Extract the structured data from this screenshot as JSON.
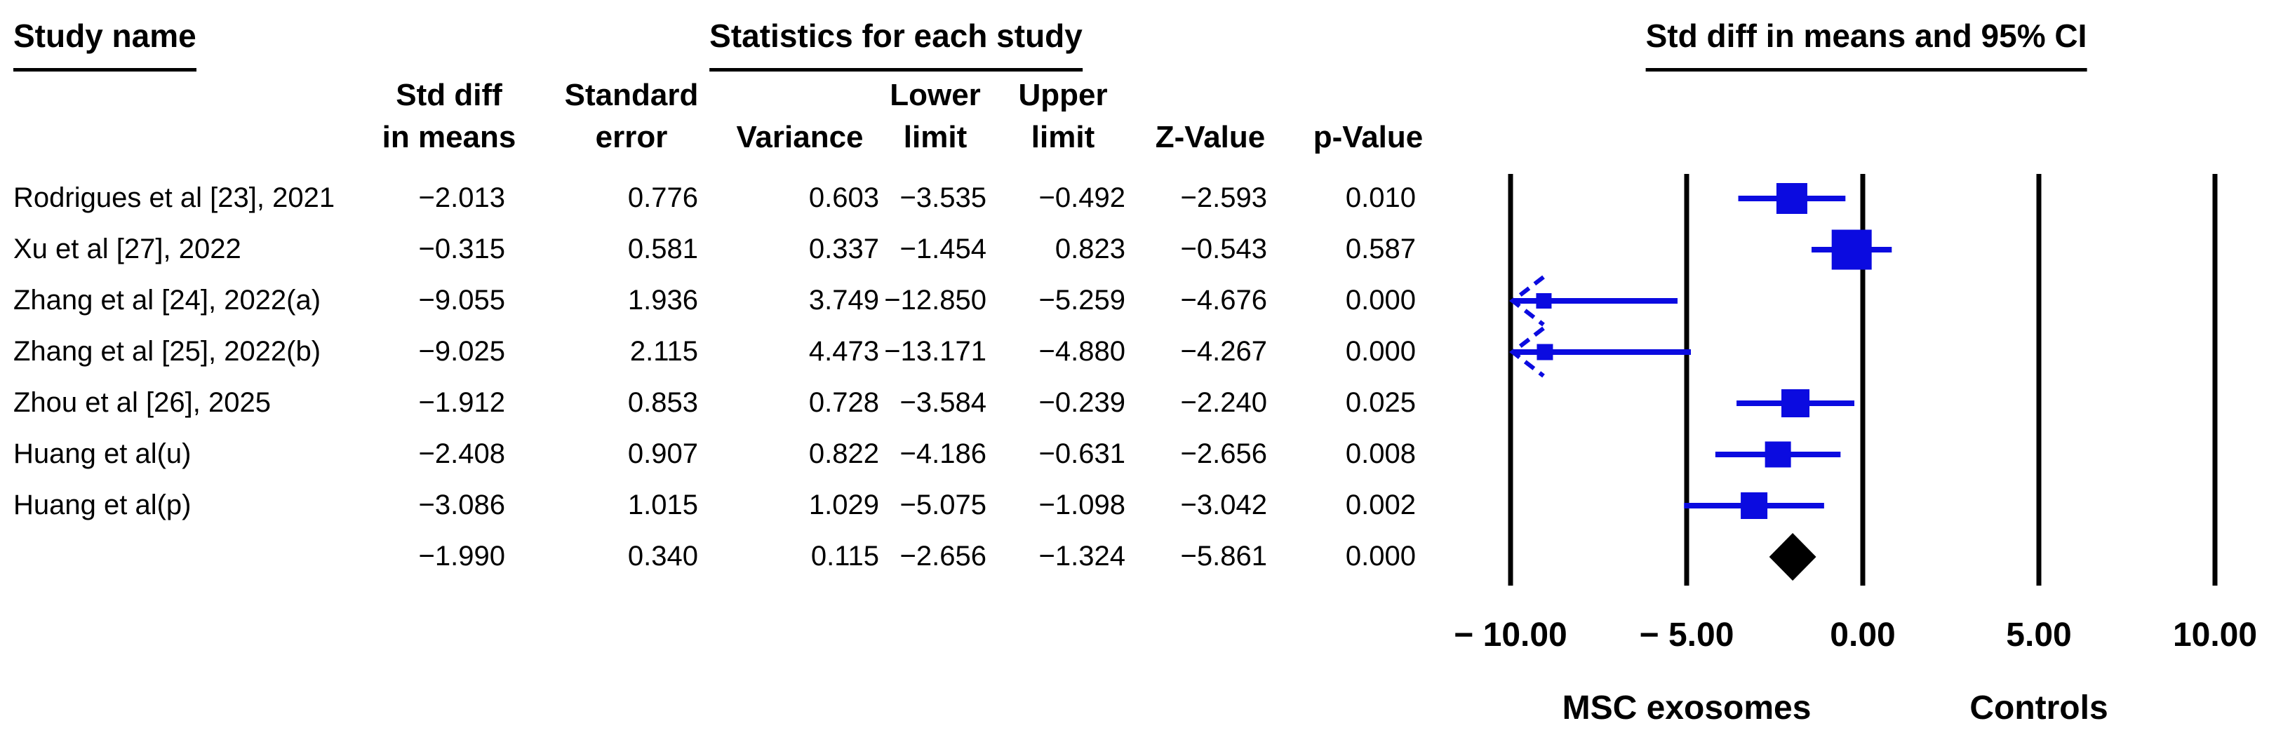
{
  "figure": {
    "title_study": "Study name",
    "title_stats": "Statistics for each study",
    "title_plot": "Std diff in means and 95% CI",
    "group_left": "MSC exosomes",
    "group_right": "Controls"
  },
  "chart_data": {
    "type": "forest",
    "columns": [
      [
        "Std diff",
        "in means"
      ],
      [
        "Standard",
        "error"
      ],
      [
        "",
        "Variance"
      ],
      [
        "Lower",
        "limit"
      ],
      [
        "Upper",
        "limit"
      ],
      [
        "",
        "Z-Value"
      ],
      [
        "",
        "p-Value"
      ]
    ],
    "studies": [
      {
        "name": "Rodrigues et al [23], 2021",
        "std_diff_in_means": -2.013,
        "standard_error": 0.776,
        "variance": 0.603,
        "lower_limit": -3.535,
        "upper_limit": -0.492,
        "z_value": -2.593,
        "p_value": 0.01,
        "marker_size_px": 44
      },
      {
        "name": "Xu et al [27], 2022",
        "std_diff_in_means": -0.315,
        "standard_error": 0.581,
        "variance": 0.337,
        "lower_limit": -1.454,
        "upper_limit": 0.823,
        "z_value": -0.543,
        "p_value": 0.587,
        "marker_size_px": 57
      },
      {
        "name": "Zhang et al [24], 2022(a)",
        "std_diff_in_means": -9.055,
        "standard_error": 1.936,
        "variance": 3.749,
        "lower_limit": -12.85,
        "upper_limit": -5.259,
        "z_value": -4.676,
        "p_value": 0.0,
        "marker_size_px": 22
      },
      {
        "name": "Zhang et al [25], 2022(b)",
        "std_diff_in_means": -9.025,
        "standard_error": 2.115,
        "variance": 4.473,
        "lower_limit": -13.171,
        "upper_limit": -4.88,
        "z_value": -4.267,
        "p_value": 0.0,
        "marker_size_px": 23
      },
      {
        "name": "Zhou et al [26], 2025",
        "std_diff_in_means": -1.912,
        "standard_error": 0.853,
        "variance": 0.728,
        "lower_limit": -3.584,
        "upper_limit": -0.239,
        "z_value": -2.24,
        "p_value": 0.025,
        "marker_size_px": 40
      },
      {
        "name": "Huang et al(u)",
        "std_diff_in_means": -2.408,
        "standard_error": 0.907,
        "variance": 0.822,
        "lower_limit": -4.186,
        "upper_limit": -0.631,
        "z_value": -2.656,
        "p_value": 0.008,
        "marker_size_px": 37
      },
      {
        "name": "Huang et al(p)",
        "std_diff_in_means": -3.086,
        "standard_error": 1.015,
        "variance": 1.029,
        "lower_limit": -5.075,
        "upper_limit": -1.098,
        "z_value": -3.042,
        "p_value": 0.002,
        "marker_size_px": 38
      }
    ],
    "overall": {
      "std_diff_in_means": -1.99,
      "standard_error": 0.34,
      "variance": 0.115,
      "lower_limit": -2.656,
      "upper_limit": -1.324,
      "z_value": -5.861,
      "p_value": 0.0
    },
    "axis": {
      "xlim": [
        -10,
        10
      ],
      "ticks": [
        -10,
        -5,
        0,
        5,
        10
      ],
      "tick_labels": [
        "− 10.00",
        "− 5.00",
        "0.00",
        "5.00",
        "10.00"
      ]
    },
    "legend": {
      "left_of_zero": "favours MSC exosomes side label",
      "note": ""
    },
    "colors": {
      "marker": "#0b0be0",
      "diamond": "#000000",
      "axis_line": "#000000"
    }
  }
}
